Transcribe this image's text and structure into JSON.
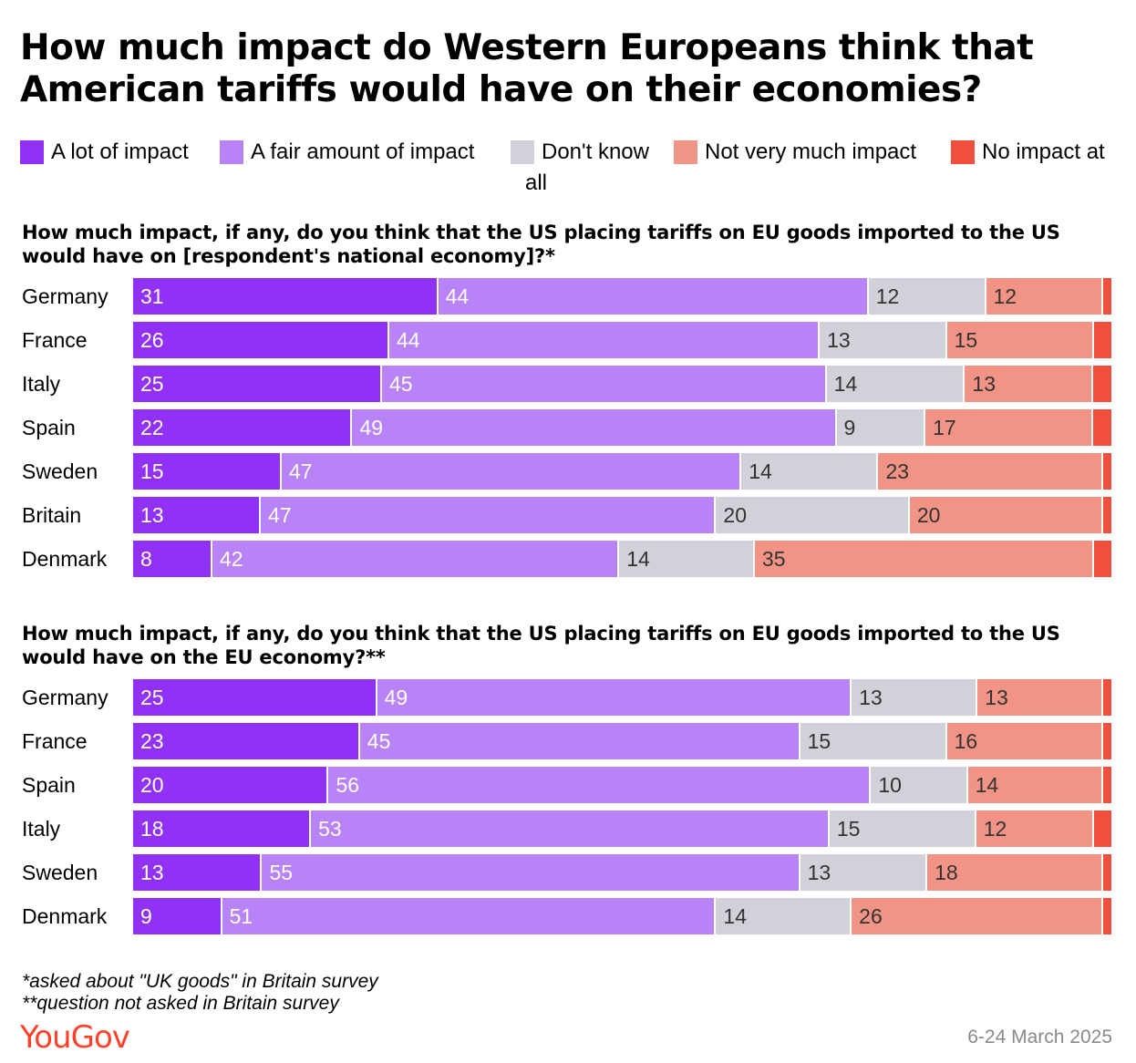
{
  "title": "How much impact do Western Europeans think that American tariffs would have on their economies?",
  "legend": [
    {
      "label": "A lot of impact",
      "color": "#9131f5"
    },
    {
      "label": "A fair amount of impact",
      "color": "#b983f8"
    },
    {
      "label": "Don't know",
      "color": "#d0d1d9"
    },
    {
      "label": "Not very much impact",
      "color": "#f29485"
    },
    {
      "label": "No impact at",
      "color": "#ef4f3c"
    }
  ],
  "legend_wrap": "all",
  "footnotes": [
    "*asked about \"UK goods\" in Britain survey",
    "**question not asked in Britain survey"
  ],
  "brand": "YouGov",
  "date": "6-24 March 2025",
  "chart_data": [
    {
      "type": "bar",
      "orientation": "horizontal",
      "stacked": true,
      "title": "How much impact, if any, do you think that the US placing tariffs on EU goods imported to the US would have on [respondent's national economy]?*",
      "categories": [
        "Germany",
        "France",
        "Italy",
        "Spain",
        "Sweden",
        "Britain",
        "Denmark"
      ],
      "series": [
        {
          "name": "A lot of impact",
          "values": [
            31,
            26,
            25,
            22,
            15,
            13,
            8
          ]
        },
        {
          "name": "A fair amount of impact",
          "values": [
            44,
            44,
            45,
            49,
            47,
            47,
            42
          ]
        },
        {
          "name": "Don't know",
          "values": [
            12,
            13,
            14,
            9,
            14,
            20,
            14
          ]
        },
        {
          "name": "Not very much impact",
          "values": [
            12,
            15,
            13,
            17,
            23,
            20,
            35
          ]
        },
        {
          "name": "No impact at all",
          "values": [
            1,
            2,
            2,
            2,
            1,
            1,
            2
          ]
        }
      ]
    },
    {
      "type": "bar",
      "orientation": "horizontal",
      "stacked": true,
      "title": "How much impact, if any, do you think that the US placing tariffs on EU goods imported to the US would have on the EU economy?**",
      "categories": [
        "Germany",
        "France",
        "Spain",
        "Italy",
        "Sweden",
        "Denmark"
      ],
      "series": [
        {
          "name": "A lot of impact",
          "values": [
            25,
            23,
            20,
            18,
            13,
            9
          ]
        },
        {
          "name": "A fair amount of impact",
          "values": [
            49,
            45,
            56,
            53,
            55,
            51
          ]
        },
        {
          "name": "Don't know",
          "values": [
            13,
            15,
            10,
            15,
            13,
            14
          ]
        },
        {
          "name": "Not very much impact",
          "values": [
            13,
            16,
            14,
            12,
            18,
            26
          ]
        },
        {
          "name": "No impact at all",
          "values": [
            1,
            1,
            1,
            2,
            1,
            1
          ]
        }
      ]
    }
  ]
}
